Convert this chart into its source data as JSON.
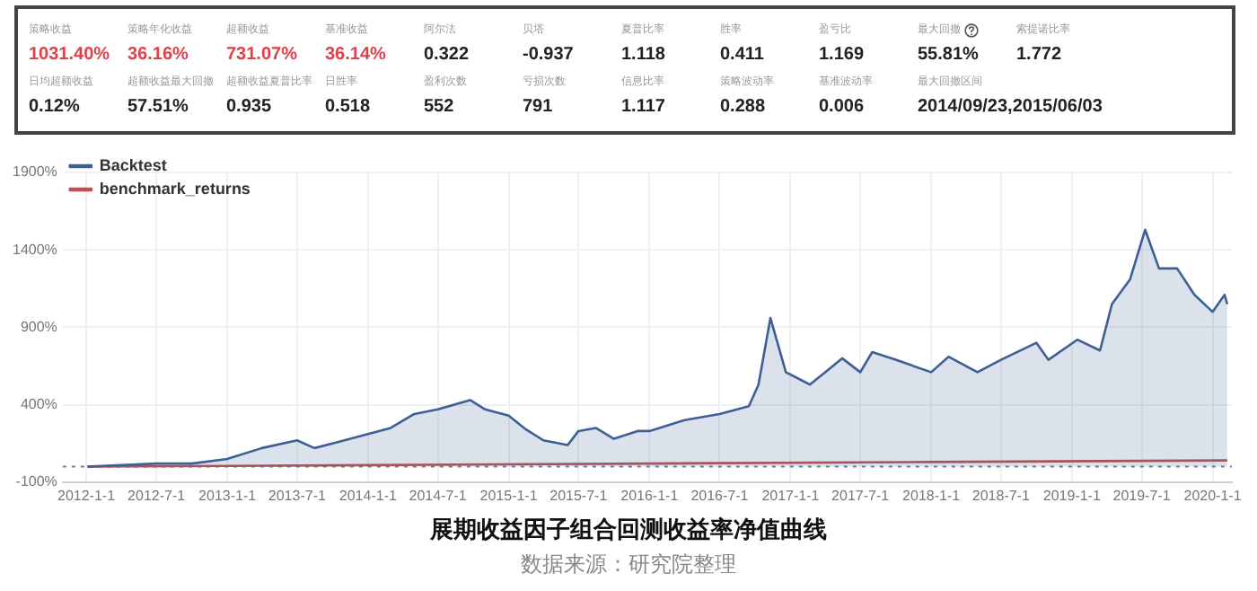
{
  "chart_data": [
    {
      "type": "other",
      "annotations": [
        "策略收益",
        "1031.40%",
        "策略年化收益",
        "36.16%",
        "超额收益",
        "731.07%",
        "基准收益",
        "36.14%",
        "阿尔法",
        "0.322",
        "贝塔",
        "-0.937",
        "夏普比率",
        "1.118",
        "胜率",
        "0.411",
        "盈亏比",
        "1.169",
        "最大回撤",
        "55.81%",
        "索提诺比率",
        "1.772",
        "日均超额收益",
        "0.12%",
        "超额收益最大回撤",
        "57.51%",
        "超额收益夏普比率",
        "0.935",
        "日胜率",
        "0.518",
        "盈利次数",
        "552",
        "亏损次数",
        "791",
        "信息比率",
        "1.117",
        "策略波动率",
        "0.288",
        "基准波动率",
        "0.006",
        "最大回撤区间",
        "2014/09/23,2015/06/03"
      ]
    },
    {
      "type": "line",
      "title": "展期收益因子组合回测收益率净值曲线",
      "annotations": [
        "数据来源：研究院整理"
      ],
      "legend": "top left",
      "grid": true,
      "marker": "none",
      "xlim": [
        "2011-11-01",
        "2020-02-20"
      ],
      "xticks": [
        {
          "value": "2012-01-01",
          "label": "2012-1-1"
        },
        {
          "value": "2012-07-01",
          "label": "2012-7-1"
        },
        {
          "value": "2013-01-01",
          "label": "2013-1-1"
        },
        {
          "value": "2013-07-01",
          "label": "2013-7-1"
        },
        {
          "value": "2014-01-01",
          "label": "2014-1-1"
        },
        {
          "value": "2014-07-01",
          "label": "2014-7-1"
        },
        {
          "value": "2015-01-01",
          "label": "2015-1-1"
        },
        {
          "value": "2015-07-01",
          "label": "2015-7-1"
        },
        {
          "value": "2016-01-01",
          "label": "2016-1-1"
        },
        {
          "value": "2016-07-01",
          "label": "2016-7-1"
        },
        {
          "value": "2017-01-01",
          "label": "2017-1-1"
        },
        {
          "value": "2017-07-01",
          "label": "2017-7-1"
        },
        {
          "value": "2018-01-01",
          "label": "2018-1-1"
        },
        {
          "value": "2018-07-01",
          "label": "2018-7-1"
        },
        {
          "value": "2019-01-01",
          "label": "2019-1-1"
        },
        {
          "value": "2019-07-01",
          "label": "2019-7-1"
        },
        {
          "value": "2020-01-01",
          "label": "2020-1-1"
        }
      ],
      "ylim": [
        -100,
        1900
      ],
      "yticks": [
        {
          "value": -100,
          "label": "-100%"
        },
        {
          "value": 400,
          "label": "400%"
        },
        {
          "value": 900,
          "label": "900%"
        },
        {
          "value": 1400,
          "label": "1400%"
        },
        {
          "value": 1900,
          "label": "1900%"
        }
      ],
      "ref_lines": [
        {
          "axis": "y",
          "value": 0,
          "color": "#6b7f99",
          "line_style": "dotted"
        }
      ],
      "series": [
        {
          "name": "Backtest",
          "type": "area",
          "color": "#3d5f94",
          "x": [
            "2012-01-04",
            "2012-07-01",
            "2012-10-01",
            "2013-01-01",
            "2013-04-01",
            "2013-07-01",
            "2013-08-15",
            "2013-10-01",
            "2014-01-01",
            "2014-03-01",
            "2014-05-01",
            "2014-07-01",
            "2014-09-23",
            "2014-11-01",
            "2015-01-01",
            "2015-02-15",
            "2015-04-01",
            "2015-06-03",
            "2015-07-01",
            "2015-08-15",
            "2015-10-01",
            "2015-12-01",
            "2016-01-01",
            "2016-04-01",
            "2016-07-01",
            "2016-09-15",
            "2016-10-10",
            "2016-11-10",
            "2016-12-20",
            "2017-02-05",
            "2017-02-20",
            "2017-04-01",
            "2017-05-15",
            "2017-07-01",
            "2017-08-01",
            "2017-10-01",
            "2018-01-01",
            "2018-02-15",
            "2018-05-01",
            "2018-07-01",
            "2018-10-01",
            "2018-11-01",
            "2019-01-15",
            "2019-03-15",
            "2019-04-15",
            "2019-06-01",
            "2019-07-10",
            "2019-08-15",
            "2019-10-01",
            "2019-11-15",
            "2020-01-01",
            "2020-02-01",
            "2020-02-08"
          ],
          "values": [
            0,
            20,
            20,
            50,
            120,
            170,
            120,
            150,
            210,
            250,
            340,
            370,
            430,
            370,
            330,
            240,
            170,
            140,
            230,
            250,
            180,
            230,
            230,
            300,
            340,
            390,
            530,
            960,
            610,
            550,
            530,
            610,
            700,
            610,
            740,
            690,
            610,
            710,
            610,
            690,
            800,
            690,
            820,
            750,
            1050,
            1210,
            1530,
            1280,
            1280,
            1110,
            1000,
            1110,
            1050
          ]
        },
        {
          "name": "benchmark_returns",
          "type": "line",
          "color": "#c0504d",
          "x": [
            "2012-01-04",
            "2014-01-01",
            "2016-01-01",
            "2018-01-01",
            "2020-02-08"
          ],
          "values": [
            0,
            10,
            20,
            30,
            40
          ]
        }
      ]
    }
  ]
}
